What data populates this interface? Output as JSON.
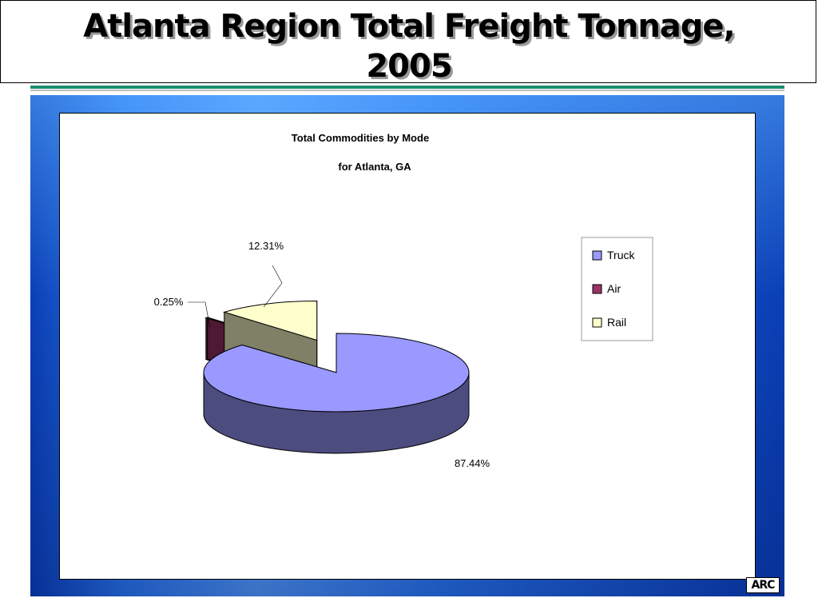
{
  "slide": {
    "title": "Atlanta Region Total  Freight Tonnage,\n2005",
    "logo_text": "ARC",
    "colors": {
      "accent_rule": "#1a8f6e",
      "panel_blue": "#2d7bf0"
    }
  },
  "chart_data": {
    "type": "pie",
    "style": "3d-exploded",
    "title": "Total Commodities by Mode",
    "subtitle": "for Atlanta, GA",
    "legend_position": "right",
    "slices": [
      {
        "label": "Truck",
        "value": 87.44,
        "display": "87.44%",
        "color": "#9999ff",
        "side_color": "#4c4c7f"
      },
      {
        "label": "Air",
        "value": 0.25,
        "display": "0.25%",
        "color": "#993366",
        "side_color": "#4d1933"
      },
      {
        "label": "Rail",
        "value": 12.31,
        "display": "12.31%",
        "color": "#ffffcc",
        "side_color": "#808066"
      }
    ]
  }
}
